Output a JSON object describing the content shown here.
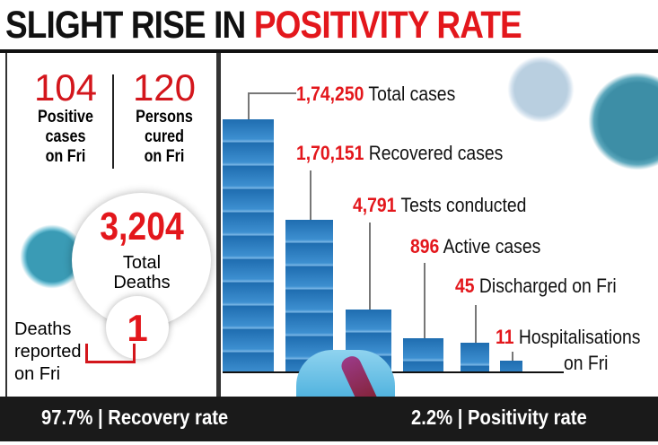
{
  "title": {
    "part1": "SLIGHT RISE IN",
    "part2": "POSITIVITY RATE"
  },
  "left": {
    "positive": {
      "value": "104",
      "label1": "Positive",
      "label2": "cases",
      "label3": "on Fri"
    },
    "cured": {
      "value": "120",
      "label1": "Persons",
      "label2": "cured",
      "label3": "on Fri"
    },
    "total_deaths": {
      "value": "3,204",
      "label1": "Total",
      "label2": "Deaths"
    },
    "deaths_fri": {
      "value": "1",
      "label1": "Deaths",
      "label2": "reported",
      "label3": "on Fri"
    }
  },
  "bottom": {
    "recovery": "97.7% | Recovery rate",
    "positivity": "2.2% | Positivity rate"
  },
  "colors": {
    "accent": "#e3171c",
    "bar": "#1f6db0"
  },
  "chart_data": {
    "type": "bar",
    "categories": [
      "Total cases",
      "Recovered cases",
      "Tests conducted",
      "Active cases",
      "Discharged on Fri",
      "Hospitalisations on Fri"
    ],
    "values": [
      174250,
      170151,
      4791,
      896,
      45,
      11
    ],
    "value_labels": [
      "1,74,250",
      "1,70,151",
      "4,791",
      "896",
      "45",
      "11"
    ],
    "label_texts": [
      "Total cases",
      "Recovered cases",
      "Tests conducted",
      "Active cases",
      "Discharged on Fri",
      "Hospitalisations"
    ],
    "extra_label": "on Fri"
  }
}
